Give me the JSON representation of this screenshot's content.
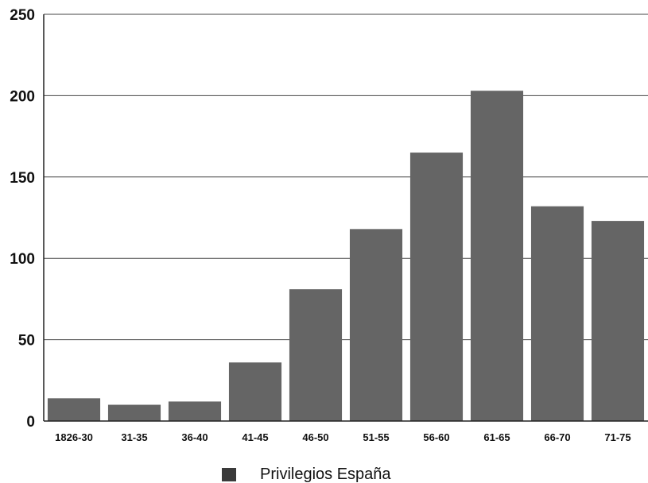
{
  "chart_data": {
    "type": "bar",
    "title": "",
    "xlabel": "",
    "ylabel": "",
    "categories": [
      "1826-30",
      "31-35",
      "36-40",
      "41-45",
      "46-50",
      "51-55",
      "56-60",
      "61-65",
      "66-70",
      "71-75"
    ],
    "series": [
      {
        "name": "Privilegios España",
        "values": [
          14,
          10,
          12,
          36,
          81,
          118,
          165,
          203,
          132,
          123
        ]
      }
    ],
    "ylim": [
      0,
      250
    ],
    "yticks": [
      "0",
      "50",
      "100",
      "150",
      "200",
      "250"
    ],
    "grid": "horizontal",
    "legend": "bottom-center",
    "colors": {
      "bar": "#656565",
      "axis": "#222222",
      "grid": "#444444",
      "background": "#ffffff"
    }
  }
}
